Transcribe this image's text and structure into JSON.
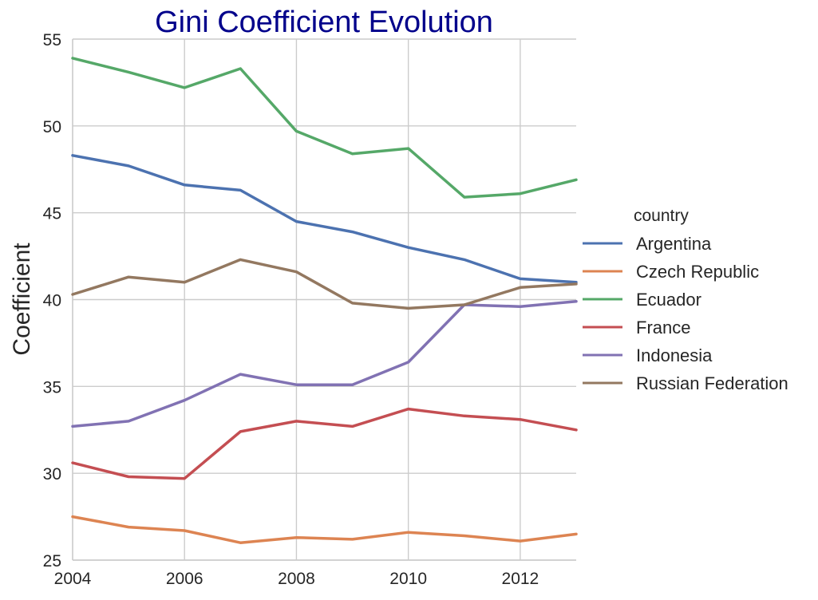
{
  "chart_data": {
    "type": "line",
    "title": "Gini Coefficient Evolution",
    "xlabel": "",
    "ylabel": "Coefficient",
    "x": [
      2004,
      2005,
      2006,
      2007,
      2008,
      2009,
      2010,
      2011,
      2012,
      2013
    ],
    "xlim": [
      2004,
      2013
    ],
    "ylim": [
      25,
      55
    ],
    "xticks": [
      "2004",
      "2006",
      "2008",
      "2010",
      "2012"
    ],
    "yticks": [
      "25",
      "30",
      "35",
      "40",
      "45",
      "50",
      "55"
    ],
    "grid": true,
    "legend": {
      "title": "country",
      "placement": "right"
    },
    "series": [
      {
        "name": "Argentina",
        "color": "#4c72b0",
        "values": [
          48.3,
          47.7,
          46.6,
          46.3,
          44.5,
          43.9,
          43.0,
          42.3,
          41.2,
          41.0
        ]
      },
      {
        "name": "Czech Republic",
        "color": "#dd8452",
        "values": [
          27.5,
          26.9,
          26.7,
          26.0,
          26.3,
          26.2,
          26.6,
          26.4,
          26.1,
          26.5
        ]
      },
      {
        "name": "Ecuador",
        "color": "#55a868",
        "values": [
          53.9,
          53.1,
          52.2,
          53.3,
          49.7,
          48.4,
          48.7,
          45.9,
          46.1,
          46.9
        ]
      },
      {
        "name": "France",
        "color": "#c44e52",
        "values": [
          30.6,
          29.8,
          29.7,
          32.4,
          33.0,
          32.7,
          33.7,
          33.3,
          33.1,
          32.5
        ]
      },
      {
        "name": "Indonesia",
        "color": "#8172b3",
        "values": [
          32.7,
          33.0,
          34.2,
          35.7,
          35.1,
          35.1,
          36.4,
          39.7,
          39.6,
          39.9
        ]
      },
      {
        "name": "Russian Federation",
        "color": "#937860",
        "values": [
          40.3,
          41.3,
          41.0,
          42.3,
          41.6,
          39.8,
          39.5,
          39.7,
          40.7,
          40.9
        ]
      }
    ]
  }
}
